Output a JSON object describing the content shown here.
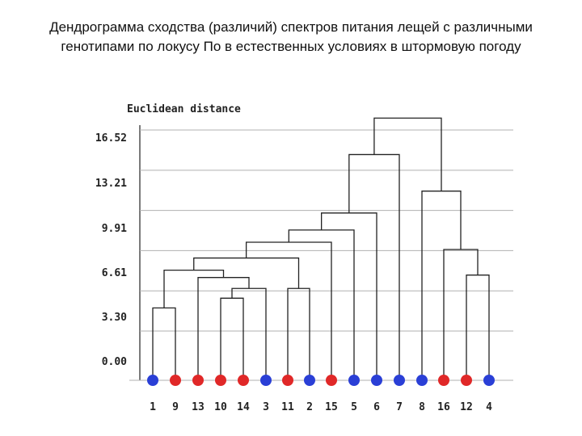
{
  "title": "Дендрограмма сходства (различий) спектров питания лещей с различными генотипами по локусу По в естественных условиях в штормовую погоду",
  "colors": {
    "blue": "#2a3fd6",
    "red": "#e02828",
    "grid": "#b0b0b0",
    "line": "#222222"
  },
  "chart_data": {
    "type": "dendrogram",
    "ylabel": "Euclidean distance",
    "yticks": [
      "16.52",
      "13.21",
      "9.91",
      "6.61",
      "3.30",
      "0.00"
    ],
    "ytick_values": [
      16.52,
      13.21,
      9.91,
      6.61,
      3.3,
      0.0
    ],
    "grid": true,
    "leaves": [
      {
        "label": "1",
        "color": "blue"
      },
      {
        "label": "9",
        "color": "red"
      },
      {
        "label": "13",
        "color": "red"
      },
      {
        "label": "10",
        "color": "red"
      },
      {
        "label": "14",
        "color": "red"
      },
      {
        "label": "3",
        "color": "blue"
      },
      {
        "label": "11",
        "color": "red"
      },
      {
        "label": "2",
        "color": "blue"
      },
      {
        "label": "15",
        "color": "red"
      },
      {
        "label": "5",
        "color": "blue"
      },
      {
        "label": "6",
        "color": "blue"
      },
      {
        "label": "7",
        "color": "blue"
      },
      {
        "label": "8",
        "color": "blue"
      },
      {
        "label": "16",
        "color": "red"
      },
      {
        "label": "12",
        "color": "red"
      },
      {
        "label": "4",
        "color": "blue"
      }
    ],
    "merges": [
      {
        "id": "A",
        "left": "leaf:0",
        "right": "leaf:1",
        "height": 1.9
      },
      {
        "id": "B",
        "left": "leaf:3",
        "right": "leaf:4",
        "height": 2.7
      },
      {
        "id": "C",
        "left": "node:B",
        "right": "leaf:5",
        "height": 3.5
      },
      {
        "id": "D",
        "left": "leaf:2",
        "right": "node:C",
        "height": 4.4
      },
      {
        "id": "E",
        "left": "node:A",
        "right": "node:D",
        "height": 5.0
      },
      {
        "id": "F",
        "left": "leaf:6",
        "right": "leaf:7",
        "height": 3.5
      },
      {
        "id": "G",
        "left": "node:E",
        "right": "node:F",
        "height": 6.0
      },
      {
        "id": "H",
        "left": "node:G",
        "right": "leaf:8",
        "height": 7.3
      },
      {
        "id": "I",
        "left": "node:H",
        "right": "leaf:9",
        "height": 8.3
      },
      {
        "id": "J",
        "left": "node:I",
        "right": "leaf:10",
        "height": 9.7
      },
      {
        "id": "K",
        "left": "node:J",
        "right": "leaf:11",
        "height": 14.5
      },
      {
        "id": "L",
        "left": "leaf:14",
        "right": "leaf:15",
        "height": 4.6
      },
      {
        "id": "M",
        "left": "leaf:13",
        "right": "node:L",
        "height": 6.7
      },
      {
        "id": "N",
        "left": "leaf:12",
        "right": "node:M",
        "height": 11.5
      },
      {
        "id": "O",
        "left": "node:K",
        "right": "node:N",
        "height": 17.5
      }
    ]
  }
}
